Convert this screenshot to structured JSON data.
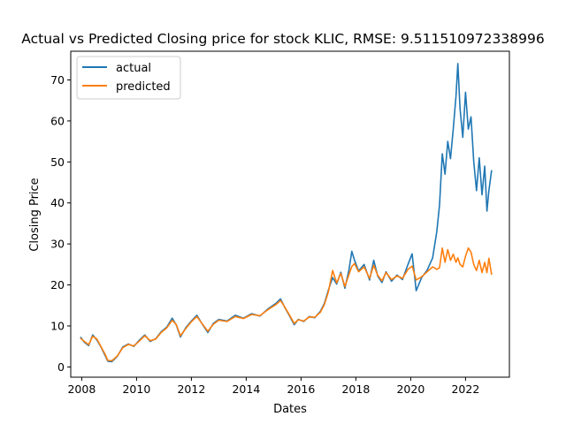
{
  "chart_data": {
    "type": "line",
    "title": "Actual vs Predicted Closing price for stock KLIC, RMSE: 9.511510972338996",
    "xlabel": "Dates",
    "ylabel": "Closing Price",
    "xlim": [
      2007.6,
      2023.6
    ],
    "ylim": [
      -2.5,
      77
    ],
    "xticks": [
      2008,
      2010,
      2012,
      2014,
      2016,
      2018,
      2020,
      2022
    ],
    "yticks": [
      0,
      10,
      20,
      30,
      40,
      50,
      60,
      70
    ],
    "grid": false,
    "legend": {
      "position": "top-left",
      "entries": [
        "actual",
        "predicted"
      ]
    },
    "colors": {
      "actual": "#1f77b4",
      "predicted": "#ff7f0e"
    },
    "series": [
      {
        "name": "actual",
        "color": "#1f77b4",
        "points": [
          [
            2007.95,
            7.3
          ],
          [
            2008.1,
            6.0
          ],
          [
            2008.25,
            5.2
          ],
          [
            2008.4,
            7.8
          ],
          [
            2008.55,
            6.6
          ],
          [
            2008.7,
            4.9
          ],
          [
            2008.85,
            2.8
          ],
          [
            2008.95,
            1.4
          ],
          [
            2009.1,
            1.3
          ],
          [
            2009.3,
            2.6
          ],
          [
            2009.5,
            4.9
          ],
          [
            2009.7,
            5.6
          ],
          [
            2009.9,
            5.0
          ],
          [
            2010.1,
            6.5
          ],
          [
            2010.3,
            7.8
          ],
          [
            2010.5,
            6.2
          ],
          [
            2010.7,
            6.9
          ],
          [
            2010.9,
            8.6
          ],
          [
            2011.1,
            9.7
          ],
          [
            2011.3,
            11.9
          ],
          [
            2011.45,
            10.2
          ],
          [
            2011.6,
            7.3
          ],
          [
            2011.8,
            9.6
          ],
          [
            2012.0,
            11.2
          ],
          [
            2012.2,
            12.6
          ],
          [
            2012.4,
            10.4
          ],
          [
            2012.6,
            8.4
          ],
          [
            2012.8,
            10.6
          ],
          [
            2013.0,
            11.6
          ],
          [
            2013.3,
            11.2
          ],
          [
            2013.6,
            12.6
          ],
          [
            2013.9,
            11.9
          ],
          [
            2014.2,
            13.0
          ],
          [
            2014.5,
            12.4
          ],
          [
            2014.8,
            14.2
          ],
          [
            2015.1,
            15.6
          ],
          [
            2015.25,
            16.6
          ],
          [
            2015.4,
            14.6
          ],
          [
            2015.6,
            12.2
          ],
          [
            2015.75,
            10.3
          ],
          [
            2015.9,
            11.6
          ],
          [
            2016.1,
            11.1
          ],
          [
            2016.3,
            12.3
          ],
          [
            2016.5,
            12.0
          ],
          [
            2016.7,
            13.5
          ],
          [
            2016.85,
            15.5
          ],
          [
            2017.0,
            18.8
          ],
          [
            2017.15,
            21.8
          ],
          [
            2017.3,
            20.2
          ],
          [
            2017.45,
            23.1
          ],
          [
            2017.6,
            19.2
          ],
          [
            2017.75,
            23.8
          ],
          [
            2017.85,
            28.2
          ],
          [
            2017.95,
            26.0
          ],
          [
            2018.1,
            23.4
          ],
          [
            2018.3,
            25.0
          ],
          [
            2018.5,
            21.2
          ],
          [
            2018.65,
            26.0
          ],
          [
            2018.8,
            22.1
          ],
          [
            2018.95,
            20.6
          ],
          [
            2019.1,
            23.2
          ],
          [
            2019.3,
            20.9
          ],
          [
            2019.5,
            22.4
          ],
          [
            2019.7,
            21.3
          ],
          [
            2019.9,
            25.0
          ],
          [
            2020.05,
            27.6
          ],
          [
            2020.2,
            18.6
          ],
          [
            2020.4,
            21.8
          ],
          [
            2020.6,
            23.6
          ],
          [
            2020.8,
            26.6
          ],
          [
            2020.95,
            33.0
          ],
          [
            2021.05,
            39.5
          ],
          [
            2021.15,
            52.0
          ],
          [
            2021.25,
            47.0
          ],
          [
            2021.35,
            55.0
          ],
          [
            2021.45,
            50.8
          ],
          [
            2021.55,
            58.0
          ],
          [
            2021.65,
            66.0
          ],
          [
            2021.72,
            74.0
          ],
          [
            2021.8,
            63.0
          ],
          [
            2021.9,
            56.0
          ],
          [
            2022.0,
            67.0
          ],
          [
            2022.1,
            58.0
          ],
          [
            2022.2,
            61.0
          ],
          [
            2022.3,
            50.0
          ],
          [
            2022.4,
            43.0
          ],
          [
            2022.5,
            51.0
          ],
          [
            2022.6,
            42.0
          ],
          [
            2022.7,
            49.0
          ],
          [
            2022.78,
            38.0
          ],
          [
            2022.85,
            43.0
          ],
          [
            2022.95,
            48.0
          ]
        ]
      },
      {
        "name": "predicted",
        "color": "#ff7f0e",
        "points": [
          [
            2007.95,
            7.0
          ],
          [
            2008.1,
            6.2
          ],
          [
            2008.25,
            5.4
          ],
          [
            2008.4,
            7.5
          ],
          [
            2008.55,
            6.8
          ],
          [
            2008.7,
            5.0
          ],
          [
            2008.85,
            3.1
          ],
          [
            2008.95,
            1.6
          ],
          [
            2009.1,
            1.5
          ],
          [
            2009.3,
            2.7
          ],
          [
            2009.5,
            4.7
          ],
          [
            2009.7,
            5.5
          ],
          [
            2009.9,
            5.1
          ],
          [
            2010.1,
            6.3
          ],
          [
            2010.3,
            7.6
          ],
          [
            2010.5,
            6.4
          ],
          [
            2010.7,
            6.8
          ],
          [
            2010.9,
            8.4
          ],
          [
            2011.1,
            9.5
          ],
          [
            2011.3,
            11.4
          ],
          [
            2011.45,
            10.3
          ],
          [
            2011.6,
            7.6
          ],
          [
            2011.8,
            9.4
          ],
          [
            2012.0,
            11.0
          ],
          [
            2012.2,
            12.3
          ],
          [
            2012.4,
            10.5
          ],
          [
            2012.6,
            8.7
          ],
          [
            2012.8,
            10.4
          ],
          [
            2013.0,
            11.4
          ],
          [
            2013.3,
            11.1
          ],
          [
            2013.6,
            12.3
          ],
          [
            2013.9,
            11.8
          ],
          [
            2014.2,
            12.8
          ],
          [
            2014.5,
            12.5
          ],
          [
            2014.8,
            14.0
          ],
          [
            2015.1,
            15.3
          ],
          [
            2015.25,
            16.2
          ],
          [
            2015.4,
            14.7
          ],
          [
            2015.6,
            12.4
          ],
          [
            2015.75,
            10.6
          ],
          [
            2015.9,
            11.5
          ],
          [
            2016.1,
            11.2
          ],
          [
            2016.3,
            12.2
          ],
          [
            2016.5,
            12.1
          ],
          [
            2016.7,
            13.3
          ],
          [
            2016.85,
            15.2
          ],
          [
            2017.0,
            18.4
          ],
          [
            2017.15,
            23.5
          ],
          [
            2017.3,
            20.5
          ],
          [
            2017.45,
            22.8
          ],
          [
            2017.6,
            19.6
          ],
          [
            2017.75,
            22.6
          ],
          [
            2017.85,
            24.5
          ],
          [
            2017.95,
            25.2
          ],
          [
            2018.1,
            23.2
          ],
          [
            2018.3,
            24.4
          ],
          [
            2018.5,
            21.6
          ],
          [
            2018.65,
            24.8
          ],
          [
            2018.8,
            22.3
          ],
          [
            2018.95,
            21.0
          ],
          [
            2019.1,
            23.0
          ],
          [
            2019.3,
            21.3
          ],
          [
            2019.5,
            22.2
          ],
          [
            2019.7,
            21.6
          ],
          [
            2019.9,
            23.8
          ],
          [
            2020.05,
            24.6
          ],
          [
            2020.2,
            21.2
          ],
          [
            2020.4,
            22.0
          ],
          [
            2020.6,
            23.2
          ],
          [
            2020.8,
            24.4
          ],
          [
            2020.95,
            23.8
          ],
          [
            2021.05,
            24.2
          ],
          [
            2021.15,
            29.0
          ],
          [
            2021.25,
            25.5
          ],
          [
            2021.35,
            28.6
          ],
          [
            2021.45,
            26.0
          ],
          [
            2021.55,
            27.5
          ],
          [
            2021.65,
            25.5
          ],
          [
            2021.72,
            26.6
          ],
          [
            2021.8,
            25.0
          ],
          [
            2021.9,
            24.4
          ],
          [
            2022.0,
            27.0
          ],
          [
            2022.1,
            29.0
          ],
          [
            2022.2,
            28.0
          ],
          [
            2022.3,
            25.0
          ],
          [
            2022.4,
            23.5
          ],
          [
            2022.5,
            26.0
          ],
          [
            2022.6,
            23.0
          ],
          [
            2022.7,
            25.5
          ],
          [
            2022.78,
            23.0
          ],
          [
            2022.85,
            26.5
          ],
          [
            2022.95,
            22.5
          ]
        ]
      }
    ]
  }
}
